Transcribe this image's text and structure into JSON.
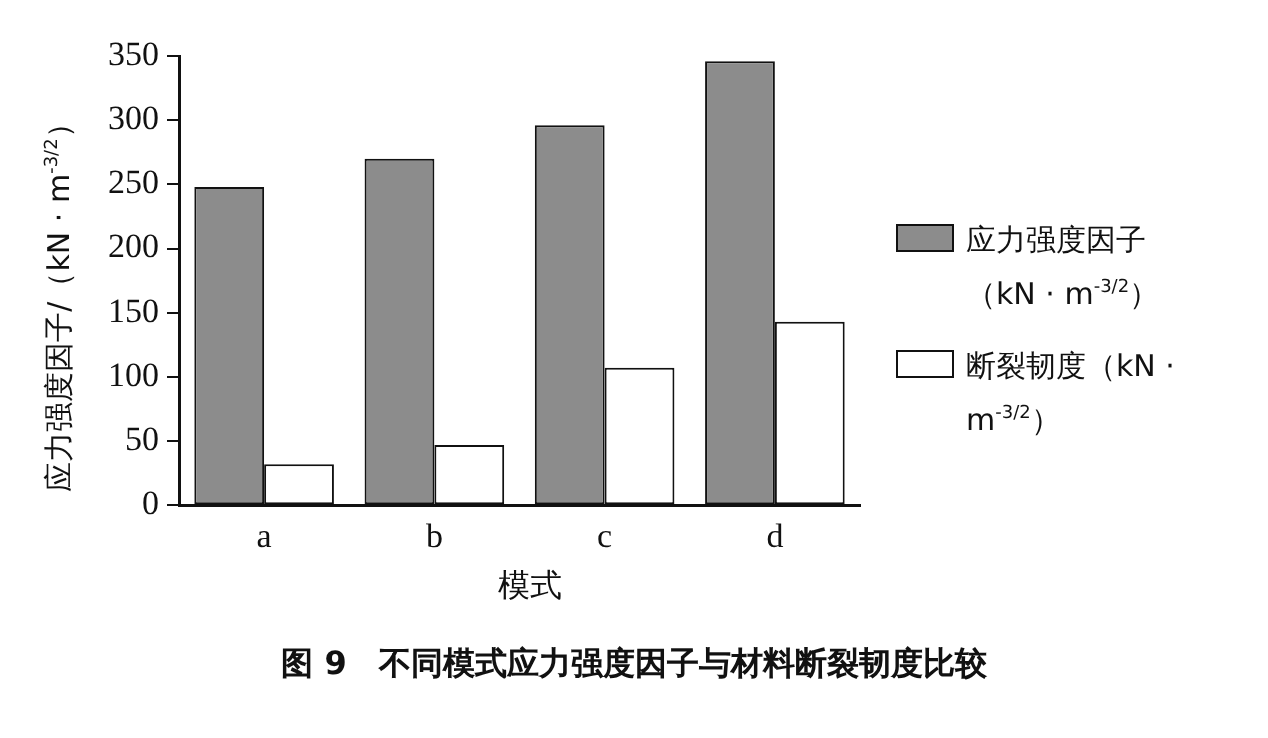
{
  "chart_data": {
    "type": "bar",
    "title": "图 9　不同模式应力强度因子与材料断裂韧度比较",
    "xlabel": "模式",
    "ylabel": "应力强度因子/（kN · m$^{-3/2}$）",
    "categories": [
      "a",
      "b",
      "c",
      "d"
    ],
    "series": [
      {
        "name": "应力强度因子（kN · m$^{-3/2}$）",
        "color": "#8c8c8c",
        "values": [
          248,
          270,
          296,
          346
        ]
      },
      {
        "name": "断裂韧度（kN · m$^{-3/2}$）",
        "color": "#ffffff",
        "values": [
          32,
          47,
          107,
          143
        ]
      }
    ],
    "ylim": [
      0,
      350
    ],
    "yticks": [
      0,
      50,
      100,
      150,
      200,
      250,
      300,
      350
    ],
    "grid": false,
    "legend": "right"
  }
}
